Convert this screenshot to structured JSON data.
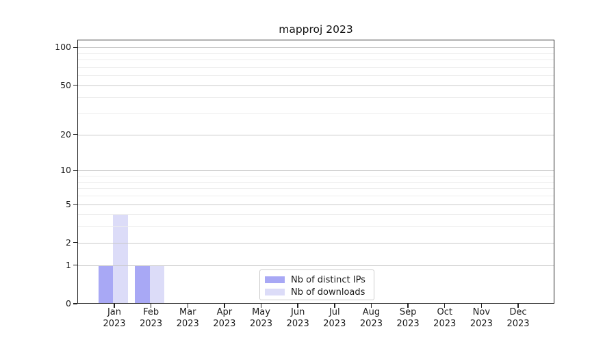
{
  "chart_data": {
    "type": "bar",
    "title": "mapproj 2023",
    "categories": [
      "Jan",
      "Feb",
      "Mar",
      "Apr",
      "May",
      "Jun",
      "Jul",
      "Aug",
      "Sep",
      "Oct",
      "Nov",
      "Dec"
    ],
    "category_year": "2023",
    "series": [
      {
        "name": "Nb of distinct IPs",
        "color": "#a8a8f5",
        "values": [
          1,
          1,
          0,
          0,
          0,
          0,
          0,
          0,
          0,
          0,
          0,
          0
        ]
      },
      {
        "name": "Nb of downloads",
        "color": "#dcdcf8",
        "values": [
          4,
          1,
          0,
          0,
          0,
          0,
          0,
          0,
          0,
          0,
          0,
          0
        ]
      }
    ],
    "xlabel": "",
    "ylabel": "",
    "yscale": "log1p",
    "ylim": [
      0,
      115
    ],
    "yticks": [
      0,
      1,
      2,
      5,
      10,
      20,
      50,
      100
    ],
    "minor_yticks": [
      3,
      4,
      6,
      7,
      8,
      9,
      30,
      40,
      60,
      70,
      80,
      90
    ],
    "grid": "horizontal, major and minor, drawn over bars",
    "legend_position": "inside bottom-center"
  },
  "colors": {
    "background": "#ffffff",
    "major_grid": "#c9c9c9",
    "minor_grid": "#ededed",
    "spine": "#222222",
    "text": "#1a1a1a",
    "legend_border": "#cccccc"
  }
}
